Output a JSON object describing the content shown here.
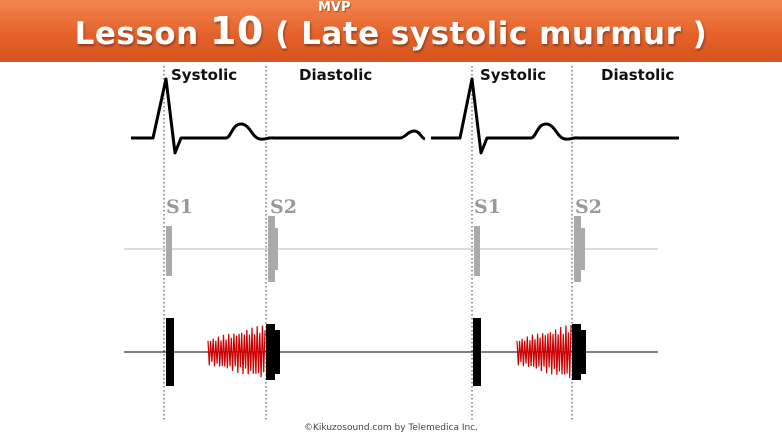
{
  "header": {
    "subtitle": "MVP",
    "title_prefix": "Lesson ",
    "title_number": "10",
    "title_suffix": " ( Late systolic murmur )"
  },
  "phases": {
    "systolic": "Systolic",
    "diastolic": "Diastolic"
  },
  "sounds": {
    "s1": "S1",
    "s2": "S2"
  },
  "footer": {
    "copyright": "©Kikuzosound.com by Telemedica Inc."
  },
  "colors": {
    "banner": "#e4622a",
    "murmur": "#cc0000",
    "normal_sound": "#aaaaaa",
    "abnormal_sound": "#000000"
  }
}
